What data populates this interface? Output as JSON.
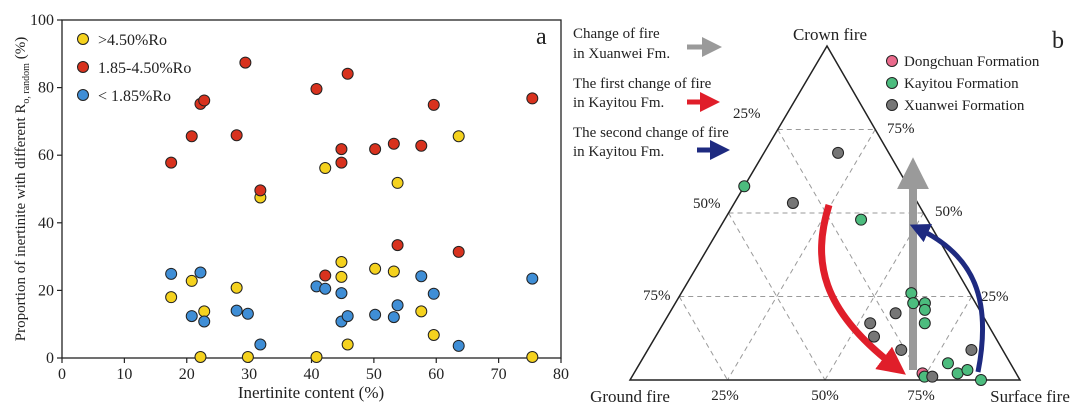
{
  "chart_data": [
    {
      "type": "scatter",
      "panel_label": "a",
      "xlabel": "Inertinite content (%)",
      "ylabel": "Proportion of inertinite with different R",
      "ylabel_sub": "o, random",
      "ylabel_unit": " (%)",
      "xlim": [
        0,
        80
      ],
      "ylim": [
        0,
        100
      ],
      "xticks": [
        "0",
        "10",
        "20",
        "30",
        "40",
        "50",
        "60",
        "70",
        "80"
      ],
      "yticks": [
        "0",
        "20",
        "40",
        "60",
        "80",
        "100"
      ],
      "series": [
        {
          "name": ">4.50%Ro",
          "color": "#f5d21e",
          "points": [
            [
              17.5,
              18
            ],
            [
              20.8,
              22.8
            ],
            [
              22.8,
              13.8
            ],
            [
              22.2,
              0.3
            ],
            [
              28,
              20.8
            ],
            [
              29.8,
              0.3
            ],
            [
              31.8,
              47.5
            ],
            [
              40.8,
              0.3
            ],
            [
              42.2,
              56.2
            ],
            [
              44.8,
              28.4
            ],
            [
              44.8,
              24
            ],
            [
              45.8,
              4
            ],
            [
              50.2,
              26.4
            ],
            [
              53.2,
              25.6
            ],
            [
              53.8,
              51.8
            ],
            [
              57.6,
              13.8
            ],
            [
              59.6,
              6.8
            ],
            [
              63.6,
              65.6
            ],
            [
              75.4,
              0.3
            ]
          ]
        },
        {
          "name": "1.85-4.50%Ro",
          "color": "#d8321e",
          "points": [
            [
              17.5,
              57.8
            ],
            [
              20.8,
              65.6
            ],
            [
              22.2,
              75.2
            ],
            [
              22.8,
              76.2
            ],
            [
              28,
              65.9
            ],
            [
              29.4,
              87.4
            ],
            [
              31.8,
              49.6
            ],
            [
              40.8,
              79.6
            ],
            [
              42.2,
              24.4
            ],
            [
              44.8,
              61.8
            ],
            [
              44.8,
              57.8
            ],
            [
              45.8,
              84.1
            ],
            [
              50.2,
              61.8
            ],
            [
              53.2,
              63.4
            ],
            [
              53.8,
              33.4
            ],
            [
              57.6,
              62.8
            ],
            [
              59.6,
              74.9
            ],
            [
              63.6,
              31.4
            ],
            [
              75.4,
              76.8
            ]
          ]
        },
        {
          "name": "< 1.85%Ro",
          "color": "#3f8ed6",
          "points": [
            [
              17.5,
              24.9
            ],
            [
              20.8,
              12.4
            ],
            [
              22.2,
              25.3
            ],
            [
              22.8,
              10.8
            ],
            [
              28,
              14
            ],
            [
              29.8,
              13.1
            ],
            [
              31.8,
              4
            ],
            [
              40.8,
              21.2
            ],
            [
              42.2,
              20.5
            ],
            [
              44.8,
              19.2
            ],
            [
              44.8,
              10.8
            ],
            [
              45.8,
              12.4
            ],
            [
              50.2,
              12.8
            ],
            [
              53.2,
              12.1
            ],
            [
              53.8,
              15.6
            ],
            [
              57.6,
              24.2
            ],
            [
              59.6,
              19
            ],
            [
              63.6,
              3.6
            ],
            [
              75.4,
              23.5
            ]
          ]
        }
      ]
    },
    {
      "type": "ternary",
      "panel_label": "b",
      "vertices": {
        "top": "Crown fire",
        "left": "Ground fire",
        "right": "Surface fire"
      },
      "left_edge_labels": [
        "25%",
        "50%",
        "75%"
      ],
      "right_edge_labels": [
        "75%",
        "50%",
        "25%"
      ],
      "bottom_edge_labels": [
        "25%",
        "50%",
        "75%"
      ],
      "series": [
        {
          "name": "Dongchuan Formation",
          "color": "#ea6a8c",
          "points": [
            [
              2,
              24,
              74
            ]
          ]
        },
        {
          "name": "Kayitou Formation",
          "color": "#4cbc7e",
          "points": [
            [
              58,
              42,
              0
            ],
            [
              48,
              17,
              35
            ],
            [
              26,
              15,
              59
            ],
            [
              23,
              13,
              64
            ],
            [
              23,
              16,
              61
            ],
            [
              21,
              14,
              65
            ],
            [
              17,
              16,
              67
            ],
            [
              5,
              16,
              79
            ],
            [
              1,
              24,
              75
            ],
            [
              2,
              15,
              83
            ],
            [
              3,
              12,
              85
            ],
            [
              0,
              10,
              90
            ]
          ]
        },
        {
          "name": "Xuanwei Formation",
          "color": "#767676",
          "points": [
            [
              68,
              13,
              19
            ],
            [
              53,
              32,
              15
            ],
            [
              20,
              22,
              58
            ],
            [
              17,
              30,
              53
            ],
            [
              13,
              31,
              56
            ],
            [
              9,
              26,
              65
            ],
            [
              9,
              8,
              83
            ],
            [
              1,
              22,
              77
            ]
          ]
        }
      ],
      "annotations": [
        {
          "text": [
            "Change of fire",
            "in Xuanwei Fm."
          ],
          "color": "#9a9a9a"
        },
        {
          "text": [
            "The first change of fire",
            "in Kayitou Fm."
          ],
          "color": "#e01e2a"
        },
        {
          "text": [
            "The second change of fire",
            "in Kayitou Fm."
          ],
          "color": "#1e2a80"
        }
      ]
    }
  ]
}
